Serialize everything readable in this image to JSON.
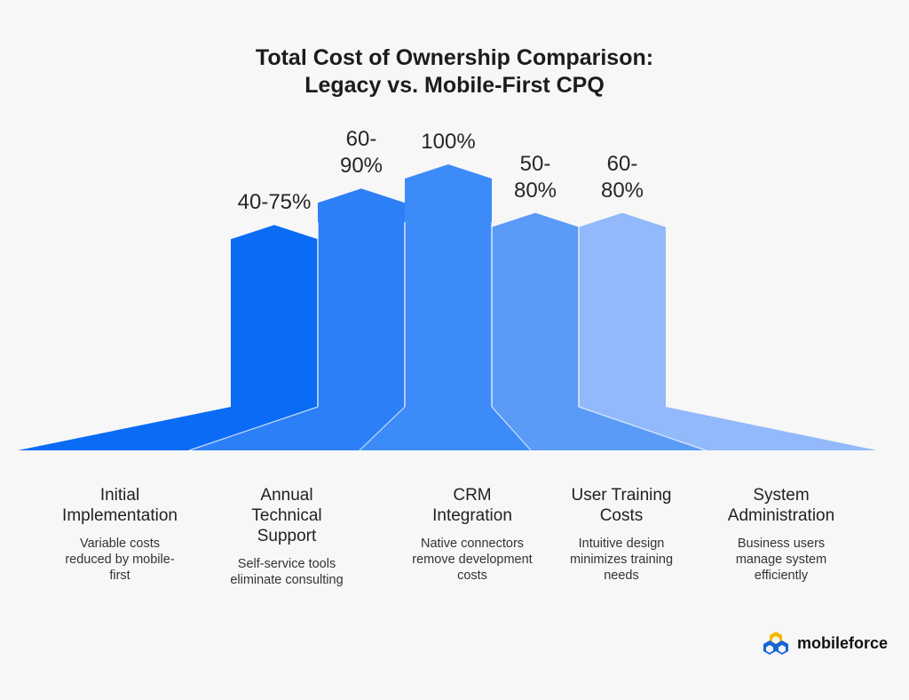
{
  "title_lines": [
    "Total Cost of Ownership Comparison:",
    "Legacy vs. Mobile-First CPQ"
  ],
  "chart_data": {
    "type": "bar",
    "title": "Total Cost of Ownership Comparison: Legacy vs. Mobile-First CPQ",
    "ylim": [
      0,
      100
    ],
    "categories": [
      "Initial Implementation",
      "Annual Technical Support",
      "CRM Integration",
      "User Training Costs",
      "System Administration"
    ],
    "values": [
      75,
      90,
      100,
      80,
      80
    ],
    "value_labels": [
      [
        "40-75%"
      ],
      [
        "60-",
        "90%"
      ],
      [
        "100%"
      ],
      [
        "50-",
        "80%"
      ],
      [
        "60-",
        "80%"
      ]
    ],
    "descriptions": [
      "Variable costs reduced by mobile-first",
      "Self-service tools eliminate consulting",
      "Native connectors remove development costs",
      "Intuitive design minimizes training needs",
      "Business users manage system efficiently"
    ],
    "colors": [
      "#0a6cf5",
      "#2d7ff7",
      "#3d8bf8",
      "#5a9bf8",
      "#92b9fb"
    ]
  },
  "category_lines": [
    [
      "Initial",
      "Implementation"
    ],
    [
      "Annual",
      "Technical",
      "Support"
    ],
    [
      "CRM",
      "Integration"
    ],
    [
      "User Training",
      "Costs"
    ],
    [
      "System",
      "Administration"
    ]
  ],
  "description_lines": [
    [
      "Variable costs",
      "reduced by mobile-",
      "first"
    ],
    [
      "Self-service tools",
      "eliminate consulting"
    ],
    [
      "Native connectors",
      "remove development",
      "costs"
    ],
    [
      "Intuitive design",
      "minimizes training",
      "needs"
    ],
    [
      "Business users",
      "manage system",
      "efficiently"
    ]
  ],
  "logo": {
    "text": "mobileforce",
    "icon": "mobileforce-logo-icon",
    "colors": [
      "#f5b800",
      "#1565d8"
    ]
  }
}
